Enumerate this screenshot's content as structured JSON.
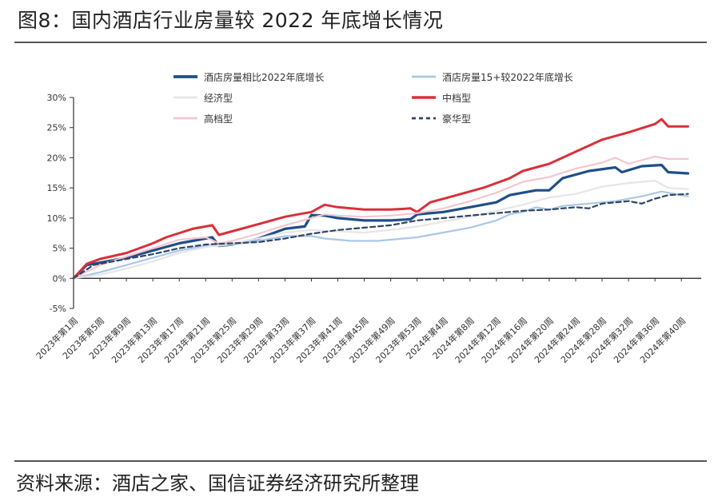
{
  "figure": {
    "title": "图8：国内酒店行业房量较 2022 年底增长情况",
    "source": "资料来源：酒店之家、国信证券经济研究所整理"
  },
  "chart_data": {
    "type": "line",
    "title": "",
    "xlabel": "",
    "ylabel": "",
    "ylim": [
      -5,
      30
    ],
    "yticks": [
      -5,
      0,
      5,
      10,
      15,
      20,
      25,
      30
    ],
    "y_tick_labels": [
      "-5%",
      "0%",
      "5%",
      "10%",
      "15%",
      "20%",
      "25%",
      "30%"
    ],
    "x_tick_labels": [
      "2023年第1周",
      "2023年第5周",
      "2023年第9周",
      "2023年第13周",
      "2023年第17周",
      "2023年第21周",
      "2023年第25周",
      "2023年第29周",
      "2023年第33周",
      "2023年第37周",
      "2023年第41周",
      "2023年第45周",
      "2023年第49周",
      "2023年第53周",
      "2024年第4周",
      "2024年第8周",
      "2024年第12周",
      "2024年第16周",
      "2024年第20周",
      "2024年第24周",
      "2024年第28周",
      "2024年第32周",
      "2024年第36周",
      "2024年第40周"
    ],
    "x_tick_weeks": [
      0,
      4,
      8,
      12,
      16,
      20,
      24,
      28,
      32,
      36,
      40,
      44,
      48,
      52,
      56,
      60,
      64,
      68,
      72,
      76,
      80,
      84,
      88,
      92
    ],
    "x_range": [
      0,
      95
    ],
    "grid": false,
    "legend_position": "top",
    "series": [
      {
        "name": "酒店房量相比2022年底增长",
        "color": "#1f4e89",
        "width": 3.2,
        "dash": "",
        "points": [
          [
            0,
            0
          ],
          [
            2,
            2.2
          ],
          [
            4,
            2.6
          ],
          [
            8,
            3.4
          ],
          [
            12,
            4.6
          ],
          [
            16,
            5.8
          ],
          [
            19,
            6.4
          ],
          [
            21,
            6.8
          ],
          [
            22,
            5.4
          ],
          [
            24,
            5.6
          ],
          [
            28,
            6.6
          ],
          [
            32,
            8.2
          ],
          [
            35,
            8.6
          ],
          [
            36,
            10.5
          ],
          [
            38,
            10.4
          ],
          [
            40,
            10.0
          ],
          [
            44,
            9.6
          ],
          [
            48,
            9.6
          ],
          [
            51,
            9.8
          ],
          [
            52,
            10.6
          ],
          [
            56,
            11.0
          ],
          [
            60,
            11.8
          ],
          [
            64,
            12.6
          ],
          [
            66,
            13.8
          ],
          [
            70,
            14.6
          ],
          [
            72,
            14.6
          ],
          [
            74,
            16.6
          ],
          [
            78,
            17.8
          ],
          [
            82,
            18.4
          ],
          [
            83,
            17.6
          ],
          [
            86,
            18.6
          ],
          [
            89,
            18.8
          ],
          [
            90,
            17.6
          ],
          [
            93,
            17.4
          ]
        ]
      },
      {
        "name": "酒店房量15+较2022年底增长",
        "color": "#a9c8e8",
        "width": 2.2,
        "dash": "",
        "points": [
          [
            0,
            0
          ],
          [
            4,
            1.0
          ],
          [
            8,
            2.2
          ],
          [
            12,
            3.4
          ],
          [
            16,
            4.6
          ],
          [
            20,
            5.4
          ],
          [
            22,
            5.4
          ],
          [
            24,
            5.6
          ],
          [
            28,
            6.2
          ],
          [
            32,
            7.0
          ],
          [
            36,
            7.0
          ],
          [
            38,
            6.6
          ],
          [
            42,
            6.2
          ],
          [
            46,
            6.2
          ],
          [
            48,
            6.4
          ],
          [
            52,
            6.8
          ],
          [
            56,
            7.6
          ],
          [
            60,
            8.4
          ],
          [
            64,
            9.6
          ],
          [
            66,
            10.6
          ],
          [
            68,
            11.0
          ],
          [
            70,
            11.8
          ],
          [
            72,
            11.4
          ],
          [
            74,
            12.0
          ],
          [
            78,
            12.4
          ],
          [
            82,
            12.8
          ],
          [
            86,
            13.6
          ],
          [
            89,
            14.4
          ],
          [
            92,
            13.8
          ],
          [
            93,
            13.6
          ]
        ]
      },
      {
        "name": "经济型",
        "color": "#e6e6e6",
        "width": 2.2,
        "dash": "",
        "points": [
          [
            0,
            0
          ],
          [
            4,
            0.6
          ],
          [
            8,
            1.6
          ],
          [
            12,
            2.8
          ],
          [
            16,
            4.2
          ],
          [
            20,
            5.2
          ],
          [
            24,
            5.8
          ],
          [
            28,
            6.6
          ],
          [
            32,
            7.6
          ],
          [
            36,
            8.0
          ],
          [
            40,
            7.8
          ],
          [
            44,
            7.6
          ],
          [
            48,
            8.0
          ],
          [
            52,
            8.6
          ],
          [
            56,
            9.4
          ],
          [
            60,
            10.2
          ],
          [
            64,
            11.2
          ],
          [
            68,
            12.2
          ],
          [
            70,
            12.8
          ],
          [
            72,
            13.4
          ],
          [
            76,
            14.0
          ],
          [
            80,
            15.2
          ],
          [
            84,
            15.8
          ],
          [
            88,
            16.2
          ],
          [
            90,
            15.0
          ],
          [
            93,
            14.8
          ]
        ]
      },
      {
        "name": "中档型",
        "color": "#d9303a",
        "width": 3.0,
        "dash": "",
        "points": [
          [
            0,
            0
          ],
          [
            2,
            2.4
          ],
          [
            4,
            3.2
          ],
          [
            8,
            4.2
          ],
          [
            12,
            5.8
          ],
          [
            14,
            6.8
          ],
          [
            18,
            8.2
          ],
          [
            21,
            8.8
          ],
          [
            22,
            7.2
          ],
          [
            24,
            7.8
          ],
          [
            28,
            9.0
          ],
          [
            32,
            10.2
          ],
          [
            36,
            11.0
          ],
          [
            38,
            12.2
          ],
          [
            40,
            11.8
          ],
          [
            44,
            11.4
          ],
          [
            48,
            11.4
          ],
          [
            51,
            11.6
          ],
          [
            52,
            11.0
          ],
          [
            54,
            12.6
          ],
          [
            58,
            13.8
          ],
          [
            62,
            15.0
          ],
          [
            66,
            16.6
          ],
          [
            68,
            17.8
          ],
          [
            72,
            19.0
          ],
          [
            76,
            21.0
          ],
          [
            80,
            23.0
          ],
          [
            84,
            24.2
          ],
          [
            88,
            25.6
          ],
          [
            89,
            26.4
          ],
          [
            90,
            25.2
          ],
          [
            93,
            25.2
          ]
        ]
      },
      {
        "name": "高档型",
        "color": "#f4c6cf",
        "width": 2.2,
        "dash": "",
        "points": [
          [
            0,
            0
          ],
          [
            4,
            2.2
          ],
          [
            8,
            3.6
          ],
          [
            12,
            5.0
          ],
          [
            16,
            6.4
          ],
          [
            20,
            6.8
          ],
          [
            22,
            5.8
          ],
          [
            24,
            6.2
          ],
          [
            28,
            7.4
          ],
          [
            32,
            8.8
          ],
          [
            36,
            10.0
          ],
          [
            38,
            10.6
          ],
          [
            40,
            10.4
          ],
          [
            44,
            10.2
          ],
          [
            48,
            10.4
          ],
          [
            52,
            10.8
          ],
          [
            56,
            11.6
          ],
          [
            60,
            12.8
          ],
          [
            64,
            14.2
          ],
          [
            68,
            16.0
          ],
          [
            72,
            16.8
          ],
          [
            76,
            18.2
          ],
          [
            80,
            19.2
          ],
          [
            82,
            20.0
          ],
          [
            84,
            19.0
          ],
          [
            88,
            20.2
          ],
          [
            90,
            19.8
          ],
          [
            93,
            19.8
          ]
        ]
      },
      {
        "name": "豪华型",
        "color": "#2f4562",
        "width": 2.2,
        "dash": "6,4",
        "points": [
          [
            0,
            0
          ],
          [
            3,
            2.2
          ],
          [
            8,
            3.2
          ],
          [
            12,
            4.0
          ],
          [
            16,
            5.0
          ],
          [
            20,
            5.6
          ],
          [
            24,
            5.8
          ],
          [
            28,
            6.0
          ],
          [
            32,
            6.6
          ],
          [
            36,
            7.4
          ],
          [
            40,
            8.0
          ],
          [
            44,
            8.4
          ],
          [
            48,
            8.8
          ],
          [
            52,
            9.6
          ],
          [
            56,
            10.0
          ],
          [
            60,
            10.4
          ],
          [
            64,
            10.8
          ],
          [
            68,
            11.2
          ],
          [
            72,
            11.4
          ],
          [
            76,
            11.8
          ],
          [
            78,
            11.6
          ],
          [
            80,
            12.4
          ],
          [
            84,
            12.8
          ],
          [
            86,
            12.4
          ],
          [
            88,
            13.2
          ],
          [
            90,
            13.8
          ],
          [
            93,
            14.0
          ]
        ]
      }
    ]
  }
}
